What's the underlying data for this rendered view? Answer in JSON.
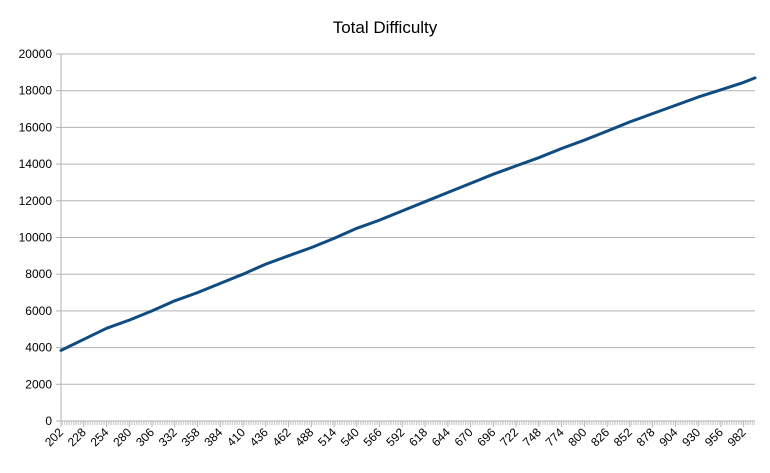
{
  "chart_data": {
    "type": "line",
    "title": "Total Difficulty",
    "xlabel": "",
    "ylabel": "",
    "ylim": [
      0,
      20000
    ],
    "y_ticks": [
      0,
      2000,
      4000,
      6000,
      8000,
      10000,
      12000,
      14000,
      16000,
      18000,
      20000
    ],
    "x_tick_labels": [
      "202",
      "228",
      "254",
      "280",
      "306",
      "332",
      "358",
      "384",
      "410",
      "436",
      "462",
      "488",
      "514",
      "540",
      "566",
      "592",
      "618",
      "644",
      "670",
      "696",
      "722",
      "748",
      "774",
      "800",
      "826",
      "852",
      "878",
      "904",
      "930",
      "956",
      "982"
    ],
    "xlim": [
      202,
      995
    ],
    "grid": true,
    "legend": "none",
    "series": [
      {
        "color": "#0f4c81",
        "x": [
          202,
          228,
          254,
          280,
          306,
          332,
          358,
          384,
          410,
          436,
          462,
          488,
          514,
          540,
          566,
          592,
          618,
          644,
          670,
          696,
          722,
          748,
          774,
          800,
          826,
          852,
          878,
          904,
          930,
          956,
          982,
          995
        ],
        "y": [
          3850,
          4450,
          5050,
          5500,
          6000,
          6550,
          7000,
          7500,
          8000,
          8550,
          9000,
          9450,
          9950,
          10500,
          10950,
          11450,
          11950,
          12450,
          12950,
          13450,
          13900,
          14350,
          14850,
          15300,
          15800,
          16300,
          16750,
          17200,
          17650,
          18050,
          18450,
          18700
        ]
      }
    ]
  }
}
